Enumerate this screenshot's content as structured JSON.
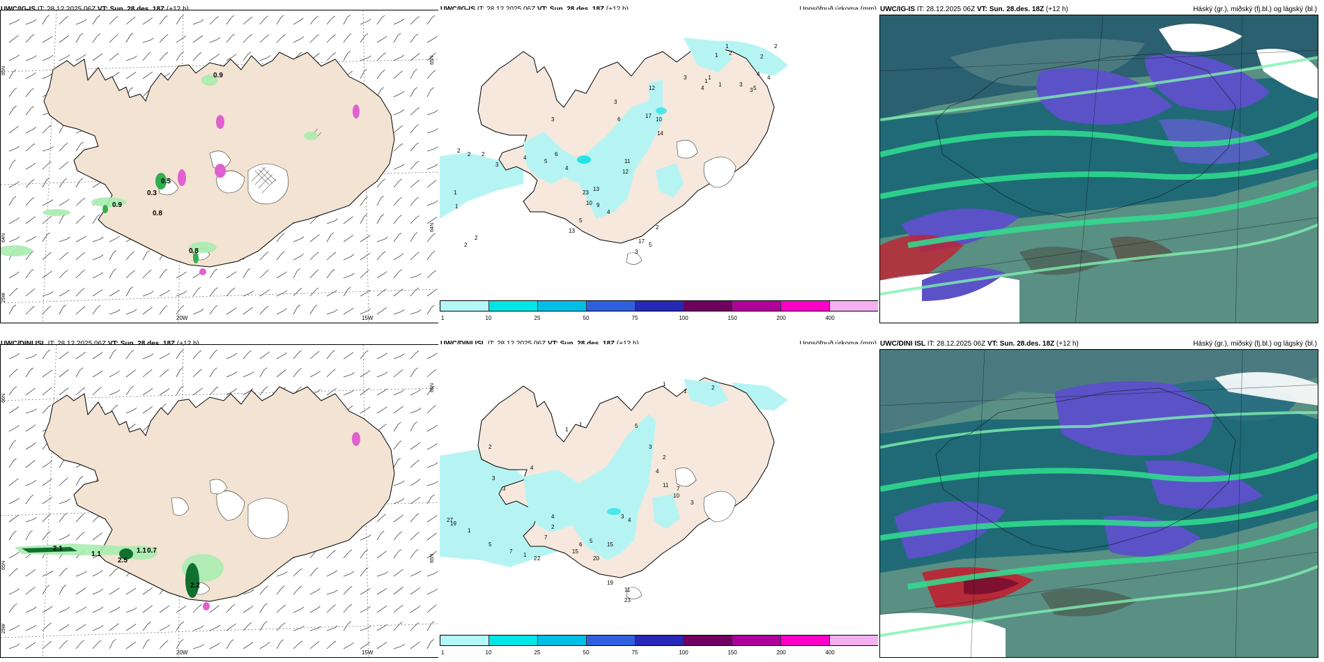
{
  "panels": {
    "top_left": {
      "model": "UWC/IG-IS",
      "it_label": "IT:",
      "it_value": "28.12.2025 06Z",
      "vt_label": "VT:",
      "vt_value": "Sun. 28.des. 18Z",
      "lead": "(+12 h)",
      "right_title": ""
    },
    "top_mid": {
      "model": "UWC/IG-IS",
      "it_label": "IT:",
      "it_value": "28.12.2025 06Z",
      "vt_label": "VT:",
      "vt_value": "Sun. 28.des. 18Z",
      "lead": "(+12 h)",
      "right_title": "Uppsöfnuð úrkoma (mm)"
    },
    "top_right": {
      "model": "UWC/IG-IS",
      "it_label": "IT:",
      "it_value": "28.12.2025 06Z",
      "vt_label": "VT:",
      "vt_value": "Sun. 28.des. 18Z",
      "lead": "(+12 h)",
      "right_title": "Háský (gr.), miðský (fj.bl.) og lágský (bl.)"
    },
    "bot_left": {
      "model": "UWC/DINI ISL",
      "it_label": "IT:",
      "it_value": "28.12.2025 06Z",
      "vt_label": "VT:",
      "vt_value": "Sun. 28.des. 18Z",
      "lead": "(+12 h)",
      "right_title": ""
    },
    "bot_mid": {
      "model": "UWC/DINI ISL",
      "it_label": "IT:",
      "it_value": "28.12.2025 06Z",
      "vt_label": "VT:",
      "vt_value": "Sun. 28.des. 18Z",
      "lead": "(+12 h)",
      "right_title": "Uppsöfnuð úrkoma (mm)"
    },
    "bot_right": {
      "model": "UWC/DINI ISL",
      "it_label": "IT:",
      "it_value": "28.12.2025 06Z",
      "vt_label": "VT:",
      "vt_value": "Sun. 28.des. 18Z",
      "lead": "(+12 h)",
      "right_title": "Háský (gr.), miðský (fj.bl.) og lágský (bl.)"
    }
  },
  "longitude_labels": [
    "20W",
    "15W"
  ],
  "latitude_labels": {
    "top_left": [
      "65N",
      "64N",
      "25W"
    ],
    "top_right_edge": [
      "65N",
      "64N"
    ],
    "bottom_left": [
      "66N",
      "65N",
      "25W"
    ],
    "bottom_right_edge": [
      "66N",
      "65N"
    ]
  },
  "colorbar": {
    "ticks": [
      "1",
      "10",
      "25",
      "50",
      "75",
      "100",
      "150",
      "200",
      "400"
    ],
    "colors": [
      "#b3f7f7",
      "#00e6e6",
      "#00bfe6",
      "#3060e0",
      "#2828b8",
      "#700060",
      "#b0009c",
      "#ff00c8",
      "#f4b0f0"
    ]
  },
  "colors": {
    "land": "#f3e3d2",
    "coast": "#000000",
    "precip_light": "#b6f4f4",
    "precip_mid": "#00dede",
    "lowcloud_green": "#58e6a0",
    "mid_teal": "#1e6b7a",
    "midcloud_blue": "#5a55c8",
    "high_gray": "#6a8f88",
    "rain_red": "#c02030",
    "wind_green": "#20a040",
    "snow_magenta": "#d040c0"
  },
  "top_left_labels": [
    "0.9",
    "0.5",
    "0.3",
    "0.8",
    "0.9",
    "0.8"
  ],
  "bot_left_labels": [
    "2.1",
    "1.1",
    "1.1",
    "0.7",
    "2.5",
    "2.2"
  ],
  "top_mid_numbers": [
    "1",
    "1",
    "2",
    "2",
    "2",
    "5",
    "1",
    "1",
    "1",
    "3",
    "3",
    "4",
    "4",
    "3",
    "4",
    "12",
    "17",
    "10",
    "14",
    "3",
    "6",
    "3",
    "2",
    "2",
    "2",
    "3",
    "4",
    "5",
    "6",
    "11",
    "12",
    "13",
    "23",
    "10",
    "9",
    "4",
    "5",
    "13",
    "17",
    "3",
    "5",
    "2",
    "1",
    "1",
    "2",
    "2",
    "4"
  ],
  "bot_mid_numbers": [
    "1",
    "1",
    "2",
    "1",
    "1",
    "2",
    "3",
    "3",
    "4",
    "5",
    "3",
    "2",
    "4",
    "11",
    "7",
    "10",
    "3",
    "3",
    "4",
    "5",
    "15",
    "20",
    "19",
    "11",
    "23",
    "27",
    "19",
    "1",
    "5",
    "7",
    "2",
    "2",
    "7",
    "15",
    "6",
    "4",
    "2",
    "1"
  ]
}
